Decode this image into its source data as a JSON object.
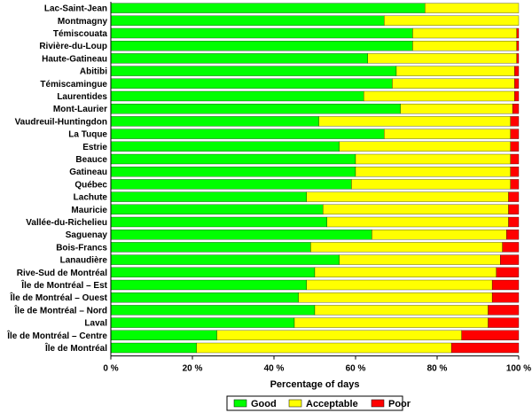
{
  "chart_data": {
    "type": "bar",
    "orientation": "horizontal",
    "stacked": true,
    "title": "",
    "xlabel": "Percentage of days",
    "ylabel": "",
    "xlim": [
      0,
      100
    ],
    "x_ticks": [
      0,
      20,
      40,
      60,
      80,
      100
    ],
    "x_tick_labels": [
      "0 %",
      "20 %",
      "40 %",
      "60 %",
      "80 %",
      "100 %"
    ],
    "grid": false,
    "legend_position": "bottom",
    "categories": [
      "Lac-Saint-Jean",
      "Montmagny",
      "Témiscouata",
      "Rivière-du-Loup",
      "Haute-Gatineau",
      "Abitibi",
      "Témiscamingue",
      "Laurentides",
      "Mont-Laurier",
      "Vaudreuil-Huntingdon",
      "La Tuque",
      "Estrie",
      "Beauce",
      "Gatineau",
      "Québec",
      "Lachute",
      "Mauricie",
      "Vallée-du-Richelieu",
      "Saguenay",
      "Bois-Francs",
      "Lanaudière",
      "Rive-Sud de Montréal",
      "Île de Montréal – Est",
      "Île de Montréal – Ouest",
      "Île de Montréal – Nord",
      "Laval",
      "Île de Montréal – Centre",
      "Île de Montréal"
    ],
    "series": [
      {
        "name": "Good",
        "color": "#00ff00",
        "values": [
          77,
          67,
          74,
          74,
          63,
          70,
          69,
          62,
          71,
          51,
          67,
          56,
          60,
          60,
          59,
          48,
          52,
          53,
          64,
          49,
          56,
          50,
          48,
          46,
          50,
          45,
          26,
          21
        ]
      },
      {
        "name": "Acceptable",
        "color": "#ffff00",
        "values": [
          23,
          33,
          25.5,
          25.5,
          36.5,
          29,
          30,
          37,
          27.5,
          47,
          31,
          42,
          38,
          38,
          39,
          49.5,
          45.5,
          44.5,
          33,
          47,
          39.5,
          44.5,
          45.5,
          47.5,
          42.5,
          47.5,
          60,
          62.5
        ]
      },
      {
        "name": "Poor",
        "color": "#ff0000",
        "values": [
          0,
          0,
          0.5,
          0.5,
          0.5,
          1,
          1,
          1,
          1.5,
          2,
          2,
          2,
          2,
          2,
          2,
          2.5,
          2.5,
          2.5,
          3,
          4,
          4.5,
          5.5,
          6.5,
          6.5,
          7.5,
          7.5,
          14,
          16.5
        ]
      }
    ]
  }
}
